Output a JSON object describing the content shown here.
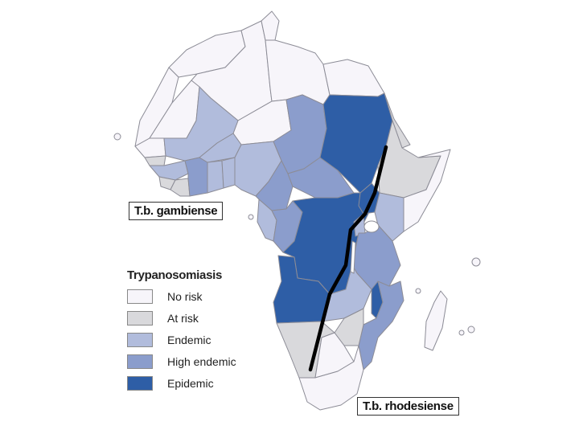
{
  "map": {
    "labels": {
      "gambiense": "T.b. gambiense",
      "rhodesiense": "T.b. rhodesiense"
    },
    "legend": {
      "title": "Trypanosomiasis",
      "items": [
        {
          "label": "No risk",
          "color": "#f7f5fa"
        },
        {
          "label": "At risk",
          "color": "#d9d9dc"
        },
        {
          "label": "Endemic",
          "color": "#b1bcdc"
        },
        {
          "label": "High endemic",
          "color": "#8b9dcc"
        },
        {
          "label": "Epidemic",
          "color": "#2e5ea6"
        }
      ]
    },
    "colors": {
      "no_risk": "#f7f5fa",
      "at_risk": "#d9d9dc",
      "endemic": "#b1bcdc",
      "high_endemic": "#8b9dcc",
      "epidemic": "#2e5ea6",
      "border": "#8c8c96",
      "divider_line": "#000000"
    }
  }
}
